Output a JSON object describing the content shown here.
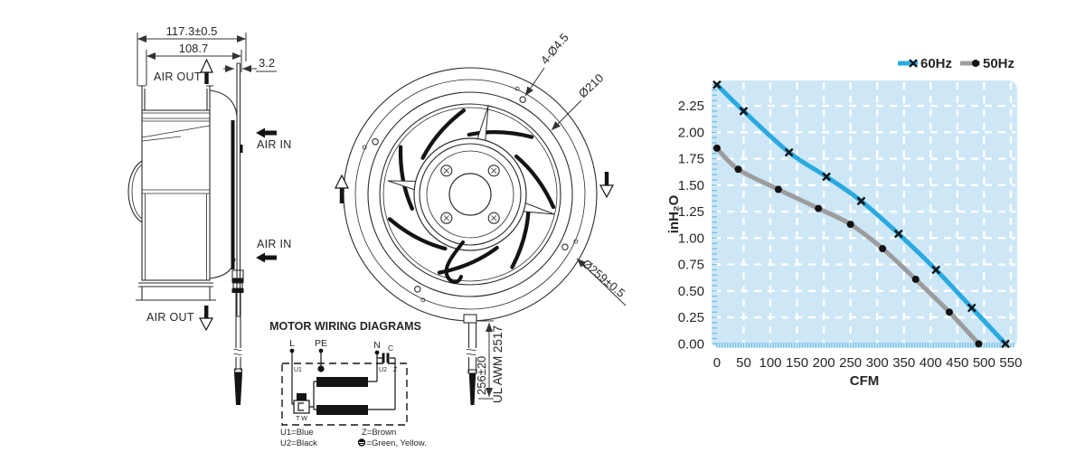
{
  "side_view": {
    "dim_total_width": "117.3±0.5",
    "dim_outlet_width": "108.7",
    "dim_plate_thickness": "3.2",
    "air_out_top": "AIR OUT",
    "air_in_upper": "AIR IN",
    "air_in_lower": "AIR IN",
    "air_out_bottom": "AIR OUT"
  },
  "front_view": {
    "dim_mounting_holes": "4-Ø4.5",
    "dim_bolt_circle": "Ø210",
    "dim_outer_diameter": "Ø259±0.5",
    "dim_cable_length": "256±20",
    "cable_spec": "UL AWM 2517"
  },
  "wiring_diagram": {
    "title": "MOTOR WIRING DIAGRAMS",
    "terminal_l": "L",
    "terminal_pe": "PE",
    "terminal_n": "N",
    "capacitor": "C",
    "label_u1": "U1",
    "label_u2": "U2",
    "label_z": "Z",
    "label_tw": "T W",
    "legend_u1": "U1=Blue",
    "legend_u2": "U2=Black",
    "legend_z": "Z=Brown",
    "legend_pe": "=Green, Yellow."
  },
  "chart_data": {
    "type": "line",
    "title": "",
    "xlabel": "CFM",
    "ylabel": "inH₂O",
    "xlim": [
      0,
      550
    ],
    "ylim": [
      0,
      2.5
    ],
    "xticks": [
      0,
      50,
      100,
      150,
      200,
      250,
      300,
      350,
      400,
      450,
      500,
      550
    ],
    "yticks": [
      0,
      0.25,
      0.5,
      0.75,
      1,
      1.25,
      1.5,
      1.75,
      2,
      2.25
    ],
    "grid": "white dashed gridlines on light-blue plot area",
    "legend_position": "top-right",
    "plot_bg": "#cde7f7",
    "minor_tick_color": "#6ebde4",
    "series": [
      {
        "name": "60Hz",
        "color": "#29a9e0",
        "marker": "x",
        "points": [
          [
            0,
            2.45
          ],
          [
            50,
            2.2
          ],
          [
            135,
            1.81
          ],
          [
            205,
            1.58
          ],
          [
            270,
            1.35
          ],
          [
            340,
            1.04
          ],
          [
            410,
            0.7
          ],
          [
            477,
            0.34
          ],
          [
            540,
            0.0
          ]
        ]
      },
      {
        "name": "50Hz",
        "color": "#9c9c9c",
        "marker": "circle",
        "points": [
          [
            0,
            1.85
          ],
          [
            40,
            1.65
          ],
          [
            115,
            1.46
          ],
          [
            190,
            1.28
          ],
          [
            250,
            1.13
          ],
          [
            310,
            0.9
          ],
          [
            372,
            0.61
          ],
          [
            435,
            0.3
          ],
          [
            490,
            0.0
          ]
        ]
      }
    ]
  }
}
